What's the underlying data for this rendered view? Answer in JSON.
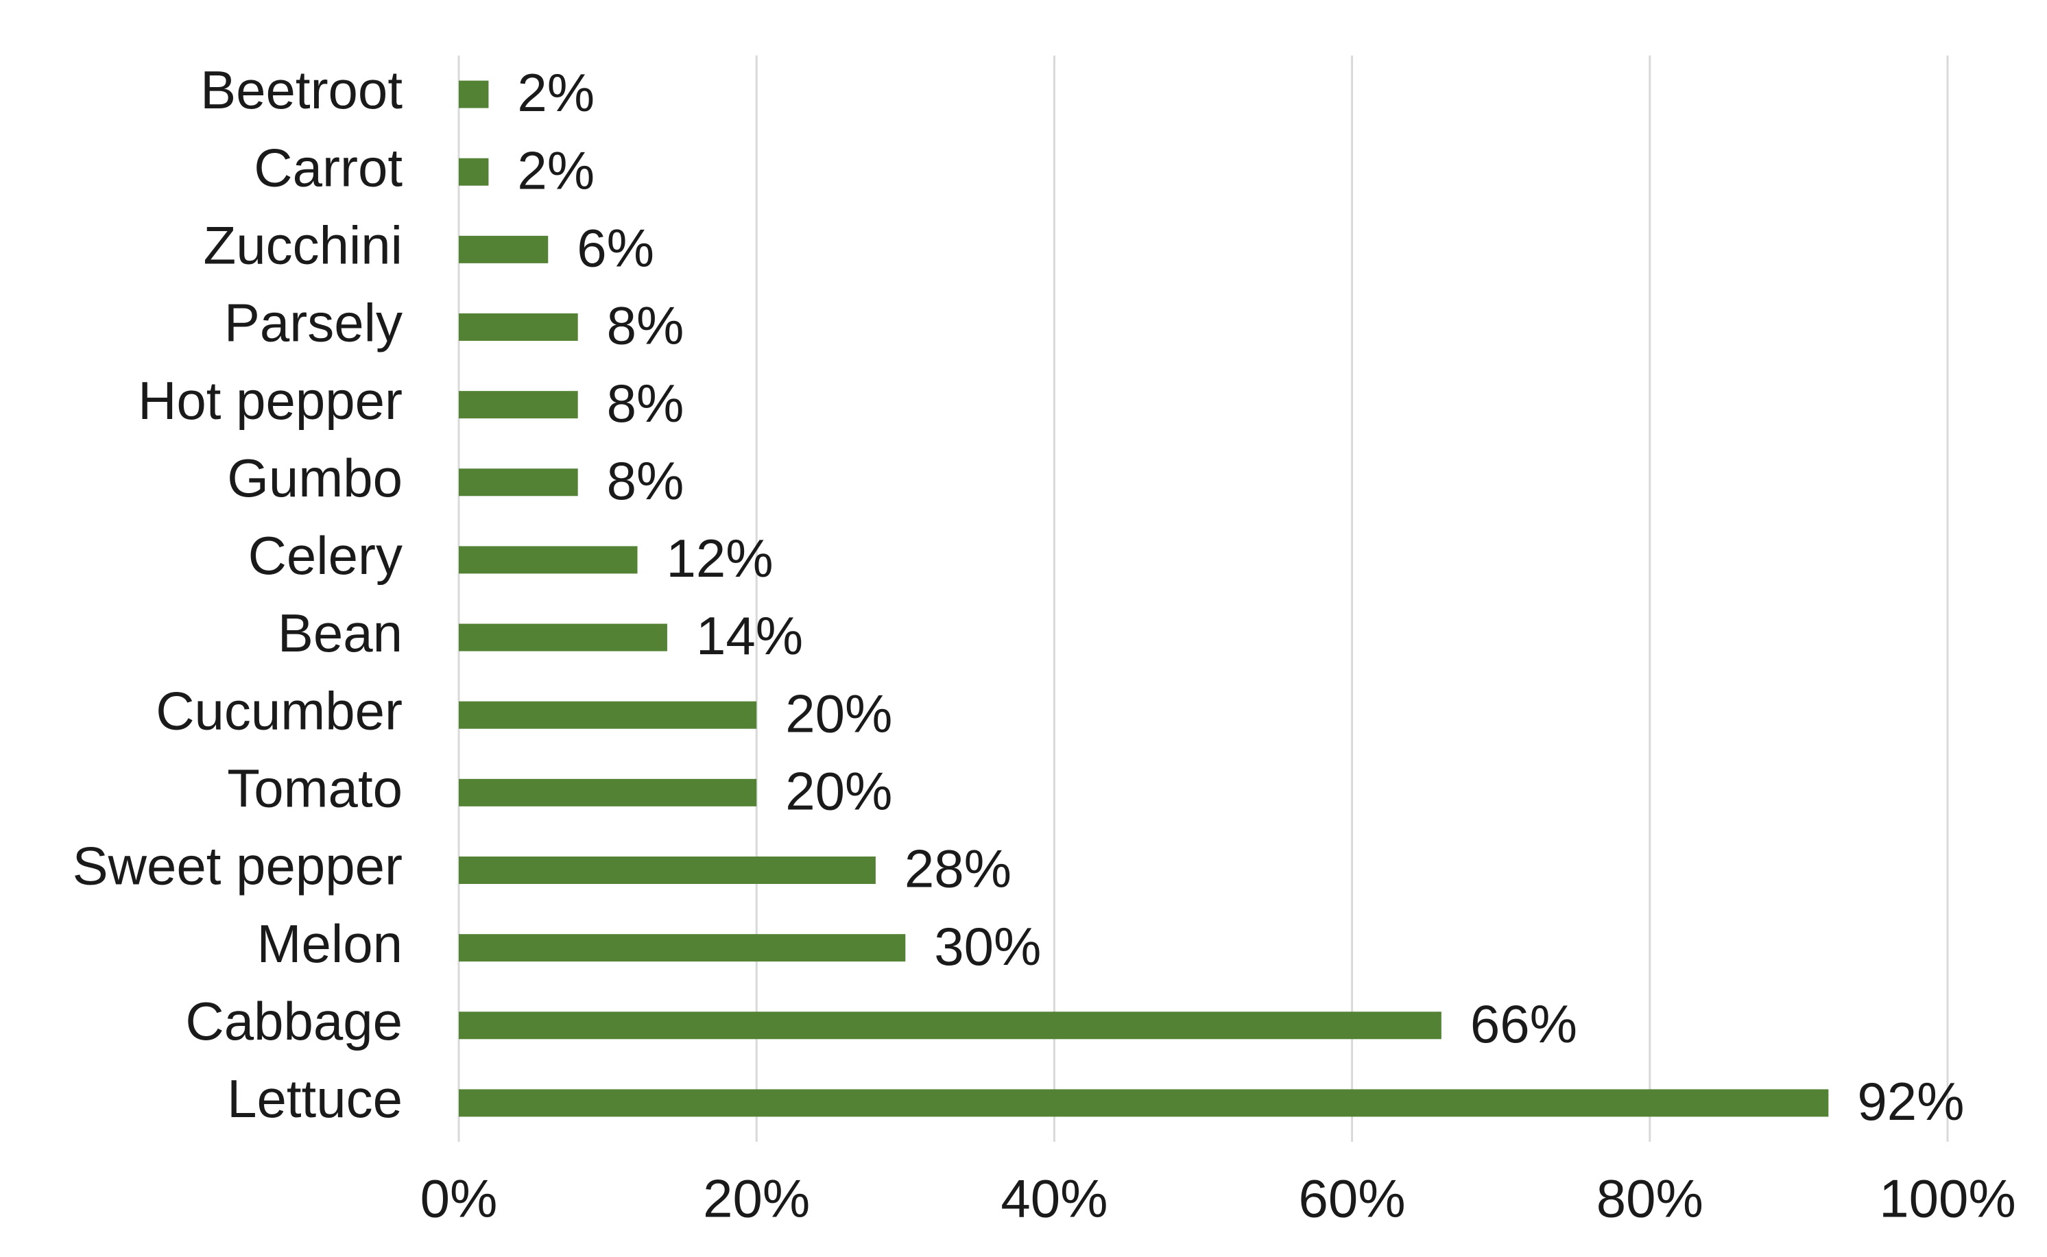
{
  "chart_data": {
    "type": "bar",
    "orientation": "horizontal",
    "categories": [
      "Beetroot",
      "Carrot",
      "Zucchini",
      "Parsely",
      "Hot pepper",
      "Gumbo",
      "Celery",
      "Bean",
      "Cucumber",
      "Tomato",
      "Sweet pepper",
      "Melon",
      "Cabbage",
      "Lettuce"
    ],
    "values": [
      2,
      2,
      6,
      8,
      8,
      8,
      12,
      14,
      20,
      20,
      28,
      30,
      66,
      92
    ],
    "value_labels": [
      "2%",
      "2%",
      "6%",
      "8%",
      "8%",
      "8%",
      "12%",
      "14%",
      "20%",
      "20%",
      "28%",
      "30%",
      "66%",
      "92%"
    ],
    "color": "#548235",
    "xlim": [
      0,
      100
    ],
    "xticks": [
      {
        "value": 0,
        "label": "0%"
      },
      {
        "value": 20,
        "label": "20%"
      },
      {
        "value": 40,
        "label": "40%"
      },
      {
        "value": 60,
        "label": "60%"
      },
      {
        "value": 80,
        "label": "80%"
      },
      {
        "value": 100,
        "label": "100%"
      }
    ],
    "grid": true
  }
}
